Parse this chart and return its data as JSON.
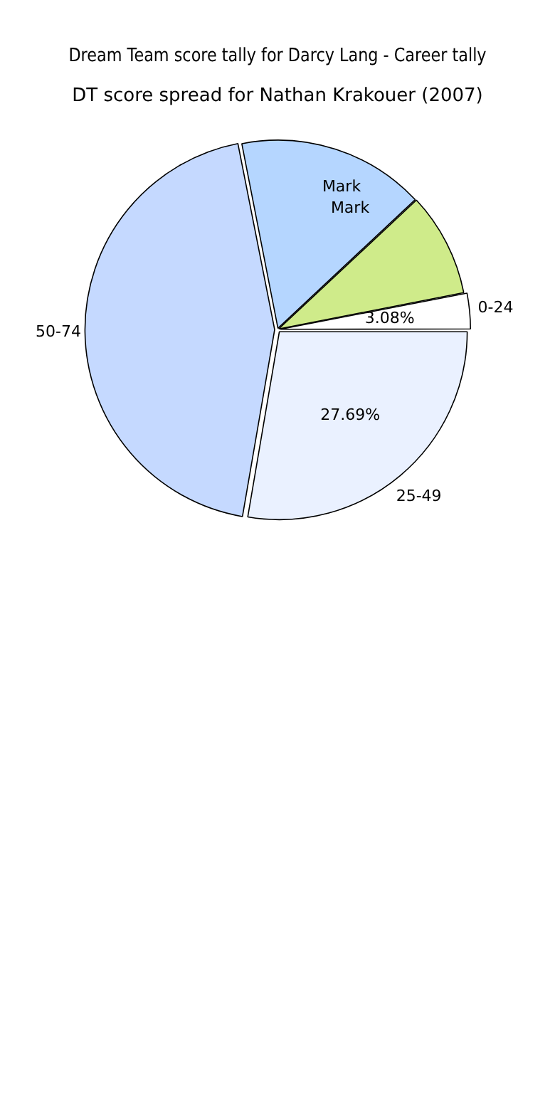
{
  "chart_data": {
    "type": "pie",
    "title": "Dream Team score tally for Darcy Lang - Career tally",
    "subtitle": "DT score spread for Nathan Krakouer (2007)",
    "categories": [
      "0-24",
      "25-49",
      "50-74",
      null,
      null
    ],
    "values": [
      3.08,
      27.69,
      44.23,
      16.1,
      8.9
    ],
    "value_labels": [
      "3.08%",
      "27.69%",
      null,
      null,
      null
    ],
    "colors": [
      "#ffffff",
      "#eaf1ff",
      "#c5d9ff",
      "#b5d6ff",
      "#cfeb8a"
    ],
    "annotations": [
      "Mark",
      "Mark"
    ],
    "legend": false
  }
}
